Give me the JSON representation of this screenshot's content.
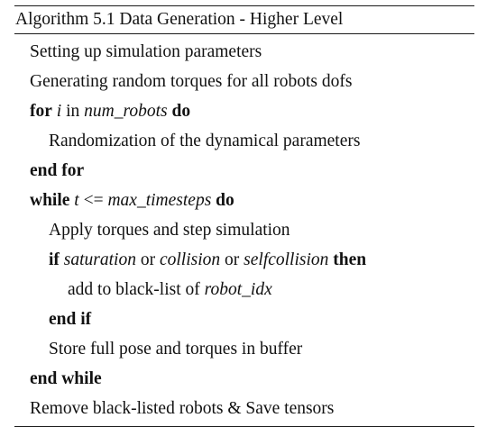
{
  "algorithm": {
    "header": "Algorithm 5.1 Data Generation - Higher Level",
    "lines": [
      {
        "indent": 0,
        "parts": [
          {
            "text": "Setting up simulation parameters"
          }
        ]
      },
      {
        "indent": 0,
        "parts": [
          {
            "text": "Generating random torques for all robots dofs"
          }
        ]
      },
      {
        "indent": 0,
        "parts": [
          {
            "text": "for",
            "style": "kw"
          },
          {
            "text": " "
          },
          {
            "text": "i",
            "style": "m"
          },
          {
            "text": " in "
          },
          {
            "text": "num_robots",
            "style": "m"
          },
          {
            "text": " "
          },
          {
            "text": "do",
            "style": "kw"
          }
        ]
      },
      {
        "indent": 1,
        "parts": [
          {
            "text": "Randomization of the dynamical parameters"
          }
        ]
      },
      {
        "indent": 0,
        "parts": [
          {
            "text": "end for",
            "style": "kw"
          }
        ]
      },
      {
        "indent": 0,
        "parts": [
          {
            "text": "while",
            "style": "kw"
          },
          {
            "text": " "
          },
          {
            "text": "t",
            "style": "m"
          },
          {
            "text": " <= "
          },
          {
            "text": "max_timesteps",
            "style": "m"
          },
          {
            "text": " "
          },
          {
            "text": "do",
            "style": "kw"
          }
        ]
      },
      {
        "indent": 1,
        "parts": [
          {
            "text": "Apply torques and step simulation"
          }
        ]
      },
      {
        "indent": 1,
        "parts": [
          {
            "text": "if",
            "style": "kw"
          },
          {
            "text": " "
          },
          {
            "text": "saturation",
            "style": "m"
          },
          {
            "text": " or "
          },
          {
            "text": "collision",
            "style": "m"
          },
          {
            "text": " or "
          },
          {
            "text": "selfcollision",
            "style": "m"
          },
          {
            "text": " "
          },
          {
            "text": "then",
            "style": "kw"
          }
        ]
      },
      {
        "indent": 2,
        "parts": [
          {
            "text": "add to black-list of "
          },
          {
            "text": "robot_idx",
            "style": "m"
          }
        ]
      },
      {
        "indent": 1,
        "parts": [
          {
            "text": "end if",
            "style": "kw"
          }
        ]
      },
      {
        "indent": 1,
        "parts": [
          {
            "text": "Store full pose and torques in buffer"
          }
        ]
      },
      {
        "indent": 0,
        "parts": [
          {
            "text": "end while",
            "style": "kw"
          }
        ]
      },
      {
        "indent": 0,
        "parts": [
          {
            "text": "Remove black-listed robots & Save tensors"
          }
        ]
      }
    ]
  }
}
